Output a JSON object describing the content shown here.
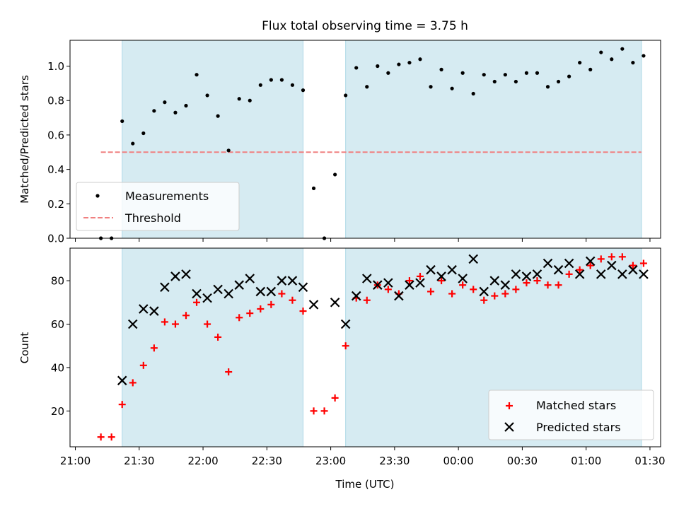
{
  "chart_data": [
    {
      "type": "scatter",
      "title": "Flux total observing time = 3.75 h",
      "ylabel": "Matched/Predicted stars",
      "ylim": [
        0,
        1.15
      ],
      "yticks": [
        "0.0",
        "0.2",
        "0.4",
        "0.6",
        "0.8",
        "1.0"
      ],
      "legend_position": "lower-left",
      "shaded_ranges": [
        [
          "21:22",
          "22:47"
        ],
        [
          "23:07",
          "01:26"
        ]
      ],
      "threshold": {
        "name": "Threshold",
        "value": 0.5,
        "x_range": [
          "21:12",
          "01:26"
        ],
        "color": "#f08080"
      },
      "series": [
        {
          "name": "Measurements",
          "color": "#000000",
          "x": [
            "21:12",
            "21:17",
            "21:22",
            "21:27",
            "21:32",
            "21:37",
            "21:42",
            "21:47",
            "21:52",
            "21:57",
            "22:02",
            "22:07",
            "22:12",
            "22:17",
            "22:22",
            "22:27",
            "22:32",
            "22:37",
            "22:42",
            "22:47",
            "22:52",
            "22:57",
            "23:02",
            "23:07",
            "23:12",
            "23:17",
            "23:22",
            "23:27",
            "23:32",
            "23:37",
            "23:42",
            "23:47",
            "23:52",
            "23:57",
            "00:02",
            "00:07",
            "00:12",
            "00:17",
            "00:22",
            "00:27",
            "00:32",
            "00:37",
            "00:42",
            "00:47",
            "00:52",
            "00:57",
            "01:02",
            "01:07",
            "01:12",
            "01:17",
            "01:22",
            "01:27"
          ],
          "y": [
            0.0,
            0.0,
            0.68,
            0.55,
            0.61,
            0.74,
            0.79,
            0.73,
            0.77,
            0.95,
            0.83,
            0.71,
            0.51,
            0.81,
            0.8,
            0.89,
            0.92,
            0.92,
            0.89,
            0.86,
            0.29,
            0.0,
            0.37,
            0.83,
            0.99,
            0.88,
            1.0,
            0.96,
            1.01,
            1.02,
            1.04,
            0.88,
            0.98,
            0.87,
            0.96,
            0.84,
            0.95,
            0.91,
            0.95,
            0.91,
            0.96,
            0.96,
            0.88,
            0.91,
            0.94,
            1.02,
            0.98,
            1.08,
            1.04,
            1.1,
            1.02,
            1.06
          ]
        }
      ]
    },
    {
      "type": "scatter",
      "xlabel": "Time (UTC)",
      "ylabel": "Count",
      "ylim": [
        3.5,
        95
      ],
      "yticks": [
        "20",
        "40",
        "60",
        "80"
      ],
      "xticks": [
        "21:00",
        "21:30",
        "22:00",
        "22:30",
        "23:00",
        "23:30",
        "00:00",
        "00:30",
        "01:00",
        "01:30"
      ],
      "legend_position": "lower-right",
      "shaded_ranges": [
        [
          "21:22",
          "22:47"
        ],
        [
          "23:07",
          "01:26"
        ]
      ],
      "series": [
        {
          "name": "Matched stars",
          "color": "#ff0000",
          "marker": "plus",
          "x": [
            "21:12",
            "21:17",
            "21:22",
            "21:27",
            "21:32",
            "21:37",
            "21:42",
            "21:47",
            "21:52",
            "21:57",
            "22:02",
            "22:07",
            "22:12",
            "22:17",
            "22:22",
            "22:27",
            "22:32",
            "22:37",
            "22:42",
            "22:47",
            "22:52",
            "22:57",
            "23:02",
            "23:07",
            "23:12",
            "23:17",
            "23:22",
            "23:27",
            "23:32",
            "23:37",
            "23:42",
            "23:47",
            "23:52",
            "23:57",
            "00:02",
            "00:07",
            "00:12",
            "00:17",
            "00:22",
            "00:27",
            "00:32",
            "00:37",
            "00:42",
            "00:47",
            "00:52",
            "00:57",
            "01:02",
            "01:07",
            "01:12",
            "01:17",
            "01:22",
            "01:27"
          ],
          "y": [
            8,
            8,
            23,
            33,
            41,
            49,
            61,
            60,
            64,
            70,
            60,
            54,
            38,
            63,
            65,
            67,
            69,
            74,
            71,
            66,
            20,
            20,
            26,
            50,
            72,
            71,
            78,
            76,
            74,
            80,
            82,
            75,
            80,
            74,
            78,
            76,
            71,
            73,
            74,
            76,
            79,
            80,
            78,
            78,
            83,
            85,
            87,
            90,
            91,
            91,
            87,
            88
          ]
        },
        {
          "name": "Predicted stars",
          "color": "#000000",
          "marker": "x",
          "x": [
            "21:22",
            "21:27",
            "21:32",
            "21:37",
            "21:42",
            "21:47",
            "21:52",
            "21:57",
            "22:02",
            "22:07",
            "22:12",
            "22:17",
            "22:22",
            "22:27",
            "22:32",
            "22:37",
            "22:42",
            "22:47",
            "22:52",
            "23:02",
            "23:07",
            "23:12",
            "23:17",
            "23:22",
            "23:27",
            "23:32",
            "23:37",
            "23:42",
            "23:47",
            "23:52",
            "23:57",
            "00:02",
            "00:07",
            "00:12",
            "00:17",
            "00:22",
            "00:27",
            "00:32",
            "00:37",
            "00:42",
            "00:47",
            "00:52",
            "00:57",
            "01:02",
            "01:07",
            "01:12",
            "01:17",
            "01:22",
            "01:27"
          ],
          "y": [
            34,
            60,
            67,
            66,
            77,
            82,
            83,
            74,
            72,
            76,
            74,
            78,
            81,
            75,
            75,
            80,
            80,
            77,
            69,
            70,
            60,
            73,
            81,
            78,
            79,
            73,
            78,
            79,
            85,
            82,
            85,
            81,
            90,
            75,
            80,
            78,
            83,
            82,
            83,
            88,
            85,
            88,
            83,
            89,
            83,
            87,
            83,
            85,
            83
          ]
        }
      ]
    }
  ]
}
